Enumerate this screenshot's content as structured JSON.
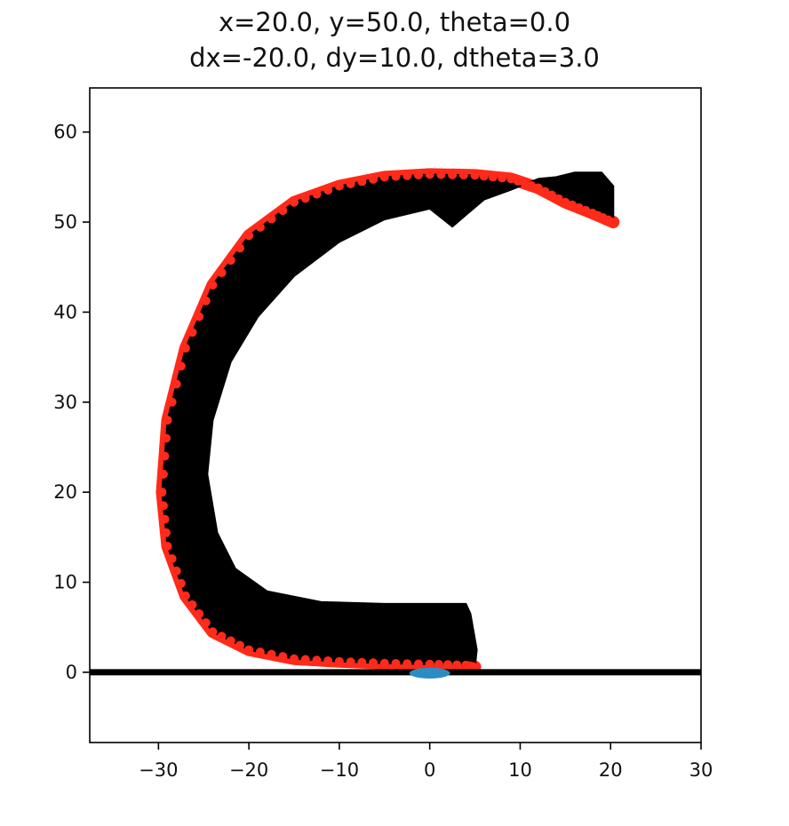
{
  "chart_data": {
    "type": "line",
    "title_lines": [
      "x=20.0, y=50.0, theta=0.0",
      "dx=-20.0, dy=10.0, dtheta=3.0"
    ],
    "xlabel": "",
    "ylabel": "",
    "xlim": [
      -37.6,
      30
    ],
    "ylim": [
      -7.8,
      64.9
    ],
    "xticks": [
      -30,
      -20,
      -10,
      0,
      10,
      20,
      30
    ],
    "yticks": [
      0,
      10,
      20,
      30,
      40,
      50,
      60
    ],
    "xtick_labels": [
      "−30",
      "−20",
      "−10",
      "0",
      "10",
      "20",
      "30"
    ],
    "ytick_labels": [
      "0",
      "10",
      "20",
      "30",
      "40",
      "50",
      "60"
    ],
    "grid": false,
    "colors": {
      "ground": "#000000",
      "trajectory_fill": "#000000",
      "trajectory_outer": "#ff2a1a",
      "target": "#2b8cc4"
    },
    "ground_line": {
      "y": 0,
      "x_range": [
        -37.6,
        30
      ]
    },
    "target_marker": {
      "x": 0,
      "y": 0,
      "width": 4.5,
      "height": 1.2
    },
    "trajectory_outer_edge": [
      [
        20.3,
        50.0
      ],
      [
        18.0,
        51.0
      ],
      [
        15.0,
        52.2
      ],
      [
        12.0,
        53.8
      ],
      [
        9.0,
        54.8
      ],
      [
        5.0,
        55.2
      ],
      [
        0.0,
        55.3
      ],
      [
        -5.0,
        55.0
      ],
      [
        -10.0,
        54.0
      ],
      [
        -15.0,
        52.2
      ],
      [
        -20.0,
        48.5
      ],
      [
        -24.0,
        43.0
      ],
      [
        -27.0,
        36.0
      ],
      [
        -29.0,
        28.0
      ],
      [
        -29.6,
        20.0
      ],
      [
        -29.0,
        14.0
      ],
      [
        -27.0,
        8.5
      ],
      [
        -24.0,
        4.5
      ],
      [
        -20.0,
        2.5
      ],
      [
        -15.0,
        1.5
      ],
      [
        -10.0,
        1.2
      ],
      [
        -5.0,
        1.0
      ],
      [
        0.0,
        0.9
      ],
      [
        4.0,
        0.8
      ],
      [
        5.0,
        0.6
      ]
    ],
    "trajectory_inner_edge": [
      [
        20.3,
        54.0
      ],
      [
        19.0,
        55.5
      ],
      [
        16.0,
        55.5
      ],
      [
        14.0,
        55.0
      ],
      [
        12.0,
        54.8
      ],
      [
        9.0,
        53.6
      ],
      [
        6.0,
        52.5
      ],
      [
        4.0,
        50.8
      ],
      [
        2.5,
        49.5
      ],
      [
        0.0,
        51.5
      ],
      [
        -5.0,
        50.3
      ],
      [
        -10.0,
        47.8
      ],
      [
        -15.0,
        44.0
      ],
      [
        -19.0,
        39.5
      ],
      [
        -22.0,
        34.5
      ],
      [
        -24.0,
        28.0
      ],
      [
        -24.6,
        22.0
      ],
      [
        -23.5,
        15.5
      ],
      [
        -21.5,
        11.5
      ],
      [
        -18.0,
        9.0
      ],
      [
        -12.0,
        7.8
      ],
      [
        -5.0,
        7.6
      ],
      [
        0.0,
        7.6
      ],
      [
        4.0,
        7.6
      ],
      [
        4.5,
        6.5
      ],
      [
        5.2,
        2.5
      ],
      [
        5.0,
        0.6
      ]
    ]
  }
}
